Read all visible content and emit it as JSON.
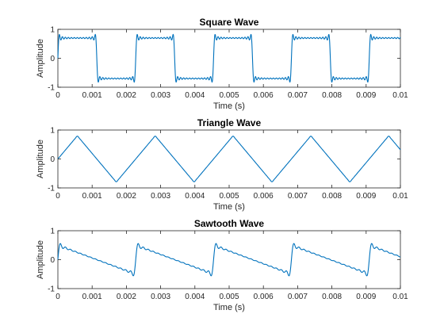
{
  "chart_data": [
    {
      "type": "line",
      "title": "Square Wave",
      "xlabel": "Time (s)",
      "ylabel": "Amplitude",
      "xlim": [
        0,
        0.01
      ],
      "ylim": [
        -1,
        1
      ],
      "xticks": [
        "0",
        "0.001",
        "0.002",
        "0.003",
        "0.004",
        "0.005",
        "0.006",
        "0.007",
        "0.008",
        "0.009",
        "0.01"
      ],
      "yticks": [
        "-1",
        "0",
        "1"
      ],
      "grid": false,
      "wave": "square",
      "fundamental_hz": 440,
      "harmonics": 25,
      "color": "#0072bd"
    },
    {
      "type": "line",
      "title": "Triangle Wave",
      "xlabel": "Time (s)",
      "ylabel": "Amplitude",
      "xlim": [
        0,
        0.01
      ],
      "ylim": [
        -1,
        1
      ],
      "xticks": [
        "0",
        "0.001",
        "0.002",
        "0.003",
        "0.004",
        "0.005",
        "0.006",
        "0.007",
        "0.008",
        "0.009",
        "0.01"
      ],
      "yticks": [
        "-1",
        "0",
        "1"
      ],
      "grid": false,
      "wave": "triangle",
      "fundamental_hz": 440,
      "harmonics": 25,
      "color": "#0072bd"
    },
    {
      "type": "line",
      "title": "Sawtooth Wave",
      "xlabel": "Time (s)",
      "ylabel": "Amplitude",
      "xlim": [
        0,
        0.01
      ],
      "ylim": [
        -1,
        1
      ],
      "xticks": [
        "0",
        "0.001",
        "0.002",
        "0.003",
        "0.004",
        "0.005",
        "0.006",
        "0.007",
        "0.008",
        "0.009",
        "0.01"
      ],
      "yticks": [
        "-1",
        "0",
        "1"
      ],
      "grid": false,
      "wave": "sawtooth",
      "fundamental_hz": 440,
      "harmonics": 15,
      "color": "#0072bd"
    }
  ]
}
